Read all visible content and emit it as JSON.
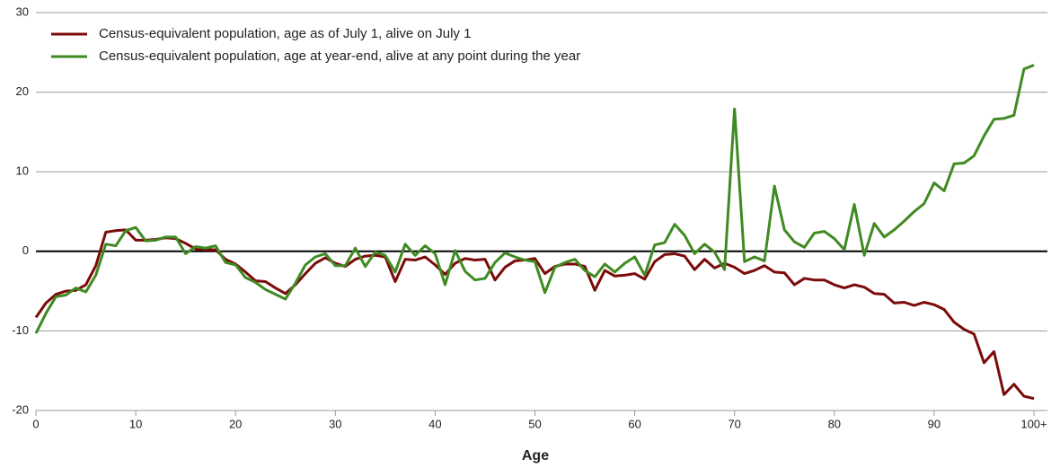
{
  "chart_data": {
    "type": "line",
    "x_label": "Age",
    "x": [
      0,
      1,
      2,
      3,
      4,
      5,
      6,
      7,
      8,
      9,
      10,
      11,
      12,
      13,
      14,
      15,
      16,
      17,
      18,
      19,
      20,
      21,
      22,
      23,
      24,
      25,
      26,
      27,
      28,
      29,
      30,
      31,
      32,
      33,
      34,
      35,
      36,
      37,
      38,
      39,
      40,
      41,
      42,
      43,
      44,
      45,
      46,
      47,
      48,
      49,
      50,
      51,
      52,
      53,
      54,
      55,
      56,
      57,
      58,
      59,
      60,
      61,
      62,
      63,
      64,
      65,
      66,
      67,
      68,
      69,
      70,
      71,
      72,
      73,
      74,
      75,
      76,
      77,
      78,
      79,
      80,
      81,
      82,
      83,
      84,
      85,
      86,
      87,
      88,
      89,
      90,
      91,
      92,
      93,
      94,
      95,
      96,
      97,
      98,
      99,
      100
    ],
    "xlim": [
      0,
      100
    ],
    "xticks": [
      0,
      10,
      20,
      30,
      40,
      50,
      60,
      70,
      80,
      90,
      {
        "value": 100,
        "label": "100+"
      }
    ],
    "ylim": [
      -20,
      30
    ],
    "yticks": [
      -20,
      -10,
      0,
      10,
      20,
      30
    ],
    "grid": true,
    "series": [
      {
        "name": "Census-equivalent population, age as of July 1, alive on July 1",
        "color": "#7b0a0a",
        "values": [
          -8.3,
          -6.5,
          -5.4,
          -5.0,
          -4.9,
          -4.2,
          -1.8,
          2.4,
          2.6,
          2.7,
          1.4,
          1.4,
          1.5,
          1.7,
          1.6,
          1.0,
          0.3,
          0.2,
          0.2,
          -1.0,
          -1.6,
          -2.6,
          -3.7,
          -3.8,
          -4.6,
          -5.3,
          -4.2,
          -2.8,
          -1.5,
          -0.8,
          -1.5,
          -1.9,
          -1.0,
          -0.6,
          -0.5,
          -0.7,
          -3.8,
          -1.0,
          -1.1,
          -0.7,
          -1.7,
          -2.9,
          -1.5,
          -0.9,
          -1.1,
          -1.0,
          -3.6,
          -2.0,
          -1.2,
          -1.1,
          -0.9,
          -2.8,
          -1.9,
          -1.6,
          -1.6,
          -1.9,
          -4.9,
          -2.4,
          -3.1,
          -3.0,
          -2.8,
          -3.5,
          -1.3,
          -0.4,
          -0.3,
          -0.6,
          -2.3,
          -1.0,
          -2.1,
          -1.5,
          -2.0,
          -2.8,
          -2.4,
          -1.8,
          -2.6,
          -2.7,
          -4.2,
          -3.4,
          -3.6,
          -3.6,
          -4.2,
          -4.6,
          -4.2,
          -4.5,
          -5.3,
          -5.4,
          -6.5,
          -6.4,
          -6.8,
          -6.4,
          -6.7,
          -7.3,
          -8.9,
          -9.8,
          -10.4,
          -14.0,
          -12.6,
          -18.0,
          -16.7,
          -18.2,
          -18.5
        ]
      },
      {
        "name": "Census-equivalent population, age at year-end, alive at any point during the year",
        "color": "#3f8a22",
        "values": [
          -10.3,
          -7.8,
          -5.7,
          -5.5,
          -4.6,
          -5.1,
          -3.0,
          0.9,
          0.7,
          2.6,
          3.0,
          1.3,
          1.4,
          1.8,
          1.8,
          -0.3,
          0.6,
          0.4,
          0.7,
          -1.4,
          -1.7,
          -3.3,
          -3.9,
          -4.8,
          -5.4,
          -6.0,
          -4.0,
          -1.7,
          -0.7,
          -0.3,
          -1.8,
          -1.8,
          0.4,
          -1.9,
          -0.1,
          -0.5,
          -2.6,
          0.9,
          -0.5,
          0.7,
          -0.3,
          -4.2,
          0.1,
          -2.5,
          -3.6,
          -3.4,
          -1.4,
          -0.2,
          -0.7,
          -1.1,
          -1.3,
          -5.2,
          -2.0,
          -1.4,
          -1.0,
          -2.4,
          -3.2,
          -1.6,
          -2.6,
          -1.5,
          -0.7,
          -3.0,
          0.8,
          1.1,
          3.4,
          2.0,
          -0.3,
          0.9,
          -0.1,
          -2.3,
          17.9,
          -1.3,
          -0.7,
          -1.2,
          8.2,
          2.7,
          1.2,
          0.5,
          2.3,
          2.5,
          1.6,
          0.2,
          5.9,
          -0.5,
          3.5,
          1.8,
          2.7,
          3.8,
          5.0,
          6.0,
          8.6,
          7.6,
          11.0,
          11.1,
          12.0,
          14.5,
          16.6,
          16.7,
          17.1,
          22.9,
          23.4
        ]
      }
    ]
  }
}
